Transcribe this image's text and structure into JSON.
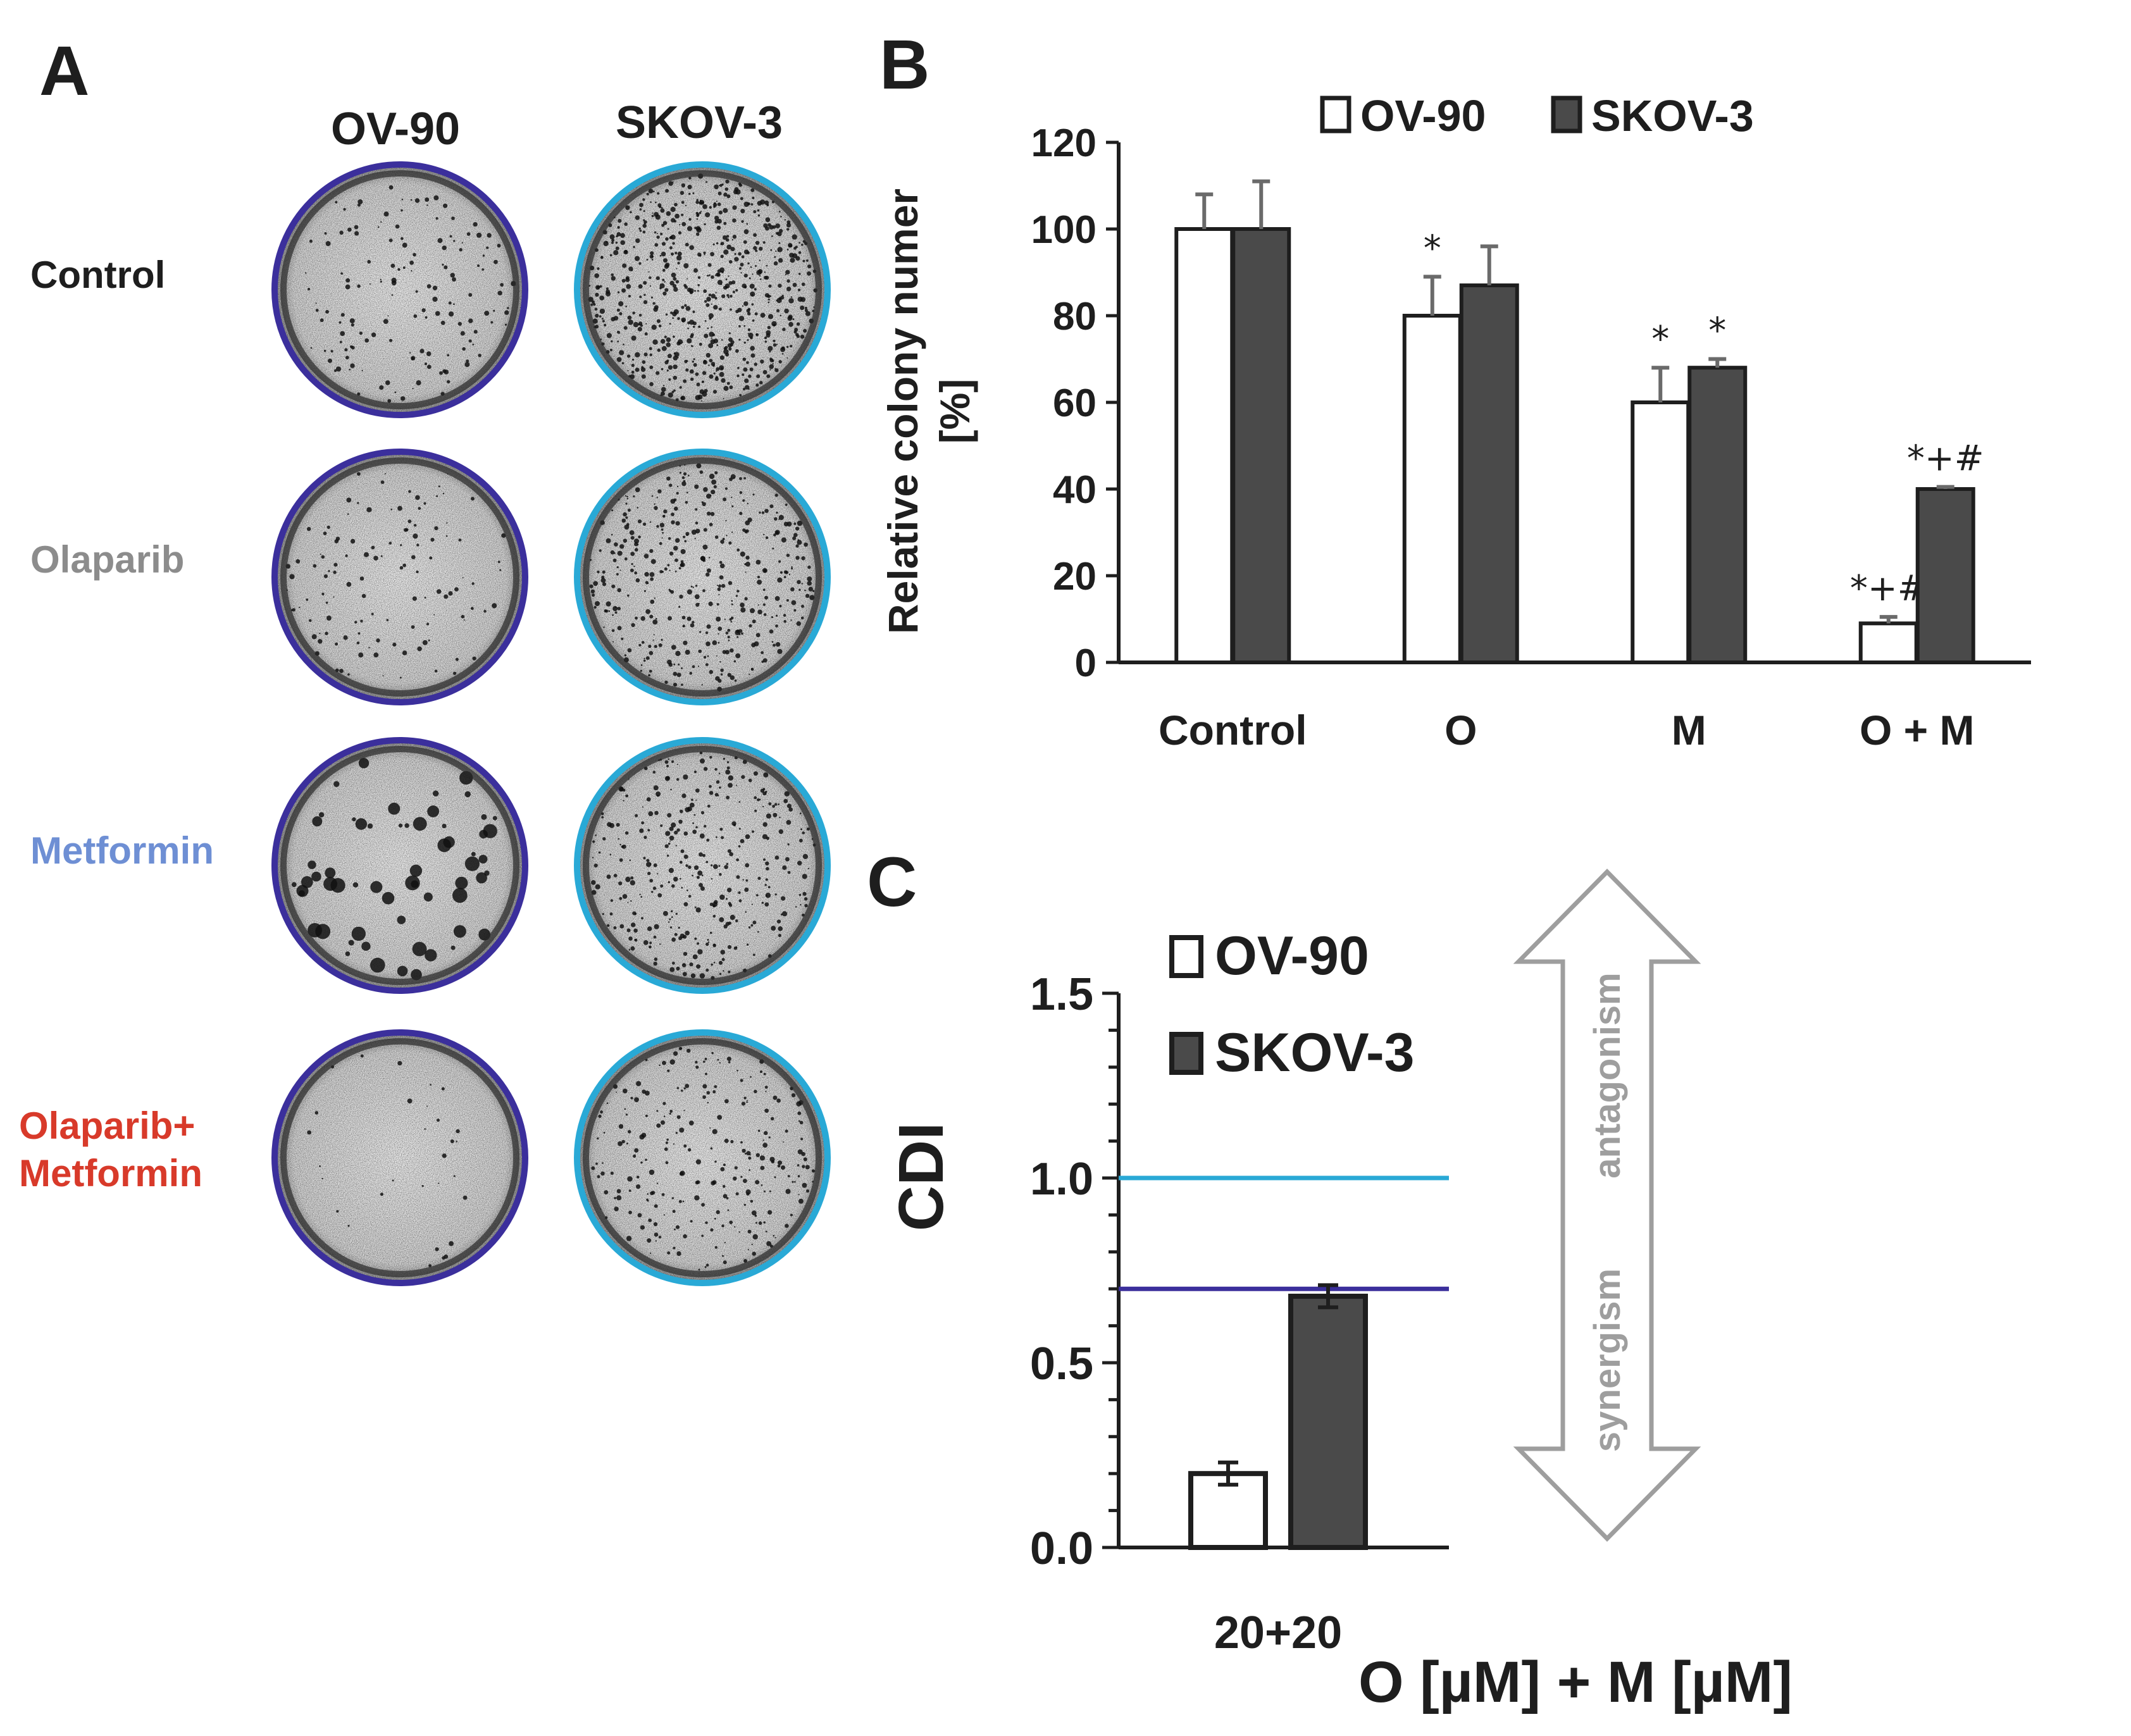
{
  "panels": {
    "a": {
      "letter": "A",
      "columns": [
        "OV-90",
        "SKOV-3"
      ],
      "rows": [
        {
          "label": "Control",
          "color": "#1e1e1e"
        },
        {
          "label": "Olaparib",
          "color": "#8c8c8c"
        },
        {
          "label": "Metformin",
          "color": "#6e8fd4"
        },
        {
          "label": "Olaparib+",
          "label2": "Metformin",
          "color": "#d83a2a"
        }
      ],
      "ring_colors": {
        "OV-90": "#3b2f9c",
        "SKOV-3": "#29a9d6"
      }
    },
    "b": {
      "letter": "B"
    },
    "c": {
      "letter": "C"
    }
  },
  "chart_data": [
    {
      "id": "B",
      "type": "bar",
      "title": "",
      "xlabel": "",
      "ylabel": "Relative colony numer",
      "ylabel2": "[%]",
      "ylim": [
        0,
        120
      ],
      "yticks": [
        0,
        20,
        40,
        60,
        80,
        100,
        120
      ],
      "categories": [
        "Control",
        "O",
        "M",
        "O + M"
      ],
      "series": [
        {
          "name": "OV-90",
          "color": "#ffffff",
          "values": [
            100,
            80,
            60,
            9
          ],
          "errors": [
            8,
            9,
            8,
            1.5
          ]
        },
        {
          "name": "SKOV-3",
          "color": "#4a4a4a",
          "values": [
            100,
            87,
            68,
            40
          ],
          "errors": [
            11,
            9,
            2,
            0.5
          ]
        }
      ],
      "annotations": [
        {
          "series": "OV-90",
          "category": "O",
          "text": "*"
        },
        {
          "series": "OV-90",
          "category": "M",
          "text": "*"
        },
        {
          "series": "SKOV-3",
          "category": "M",
          "text": "*"
        },
        {
          "series": "OV-90",
          "category": "O + M",
          "text": "*+#"
        },
        {
          "series": "SKOV-3",
          "category": "O + M",
          "text": "*+#"
        }
      ],
      "legend": [
        "OV-90",
        "SKOV-3"
      ]
    },
    {
      "id": "C",
      "type": "bar",
      "title": "",
      "ylabel": "CDI",
      "xlabel": "O [µM] + M [µM]",
      "ylim": [
        0,
        1.5
      ],
      "yticks": [
        "0.0",
        "0.5",
        "1.0",
        "1.5"
      ],
      "categories": [
        "20+20"
      ],
      "series": [
        {
          "name": "OV-90",
          "color": "#ffffff",
          "values": [
            0.2
          ],
          "errors": [
            0.03
          ]
        },
        {
          "name": "SKOV-3",
          "color": "#4a4a4a",
          "values": [
            0.68
          ],
          "errors": [
            0.03
          ]
        }
      ],
      "reference_lines": [
        {
          "value": 1.0,
          "color": "#29a9d6"
        },
        {
          "value": 0.7,
          "color": "#3b2f9c"
        }
      ],
      "arrow_labels": {
        "top": "antagonism",
        "bottom": "synergism"
      },
      "legend": [
        "OV-90",
        "SKOV-3"
      ]
    }
  ]
}
